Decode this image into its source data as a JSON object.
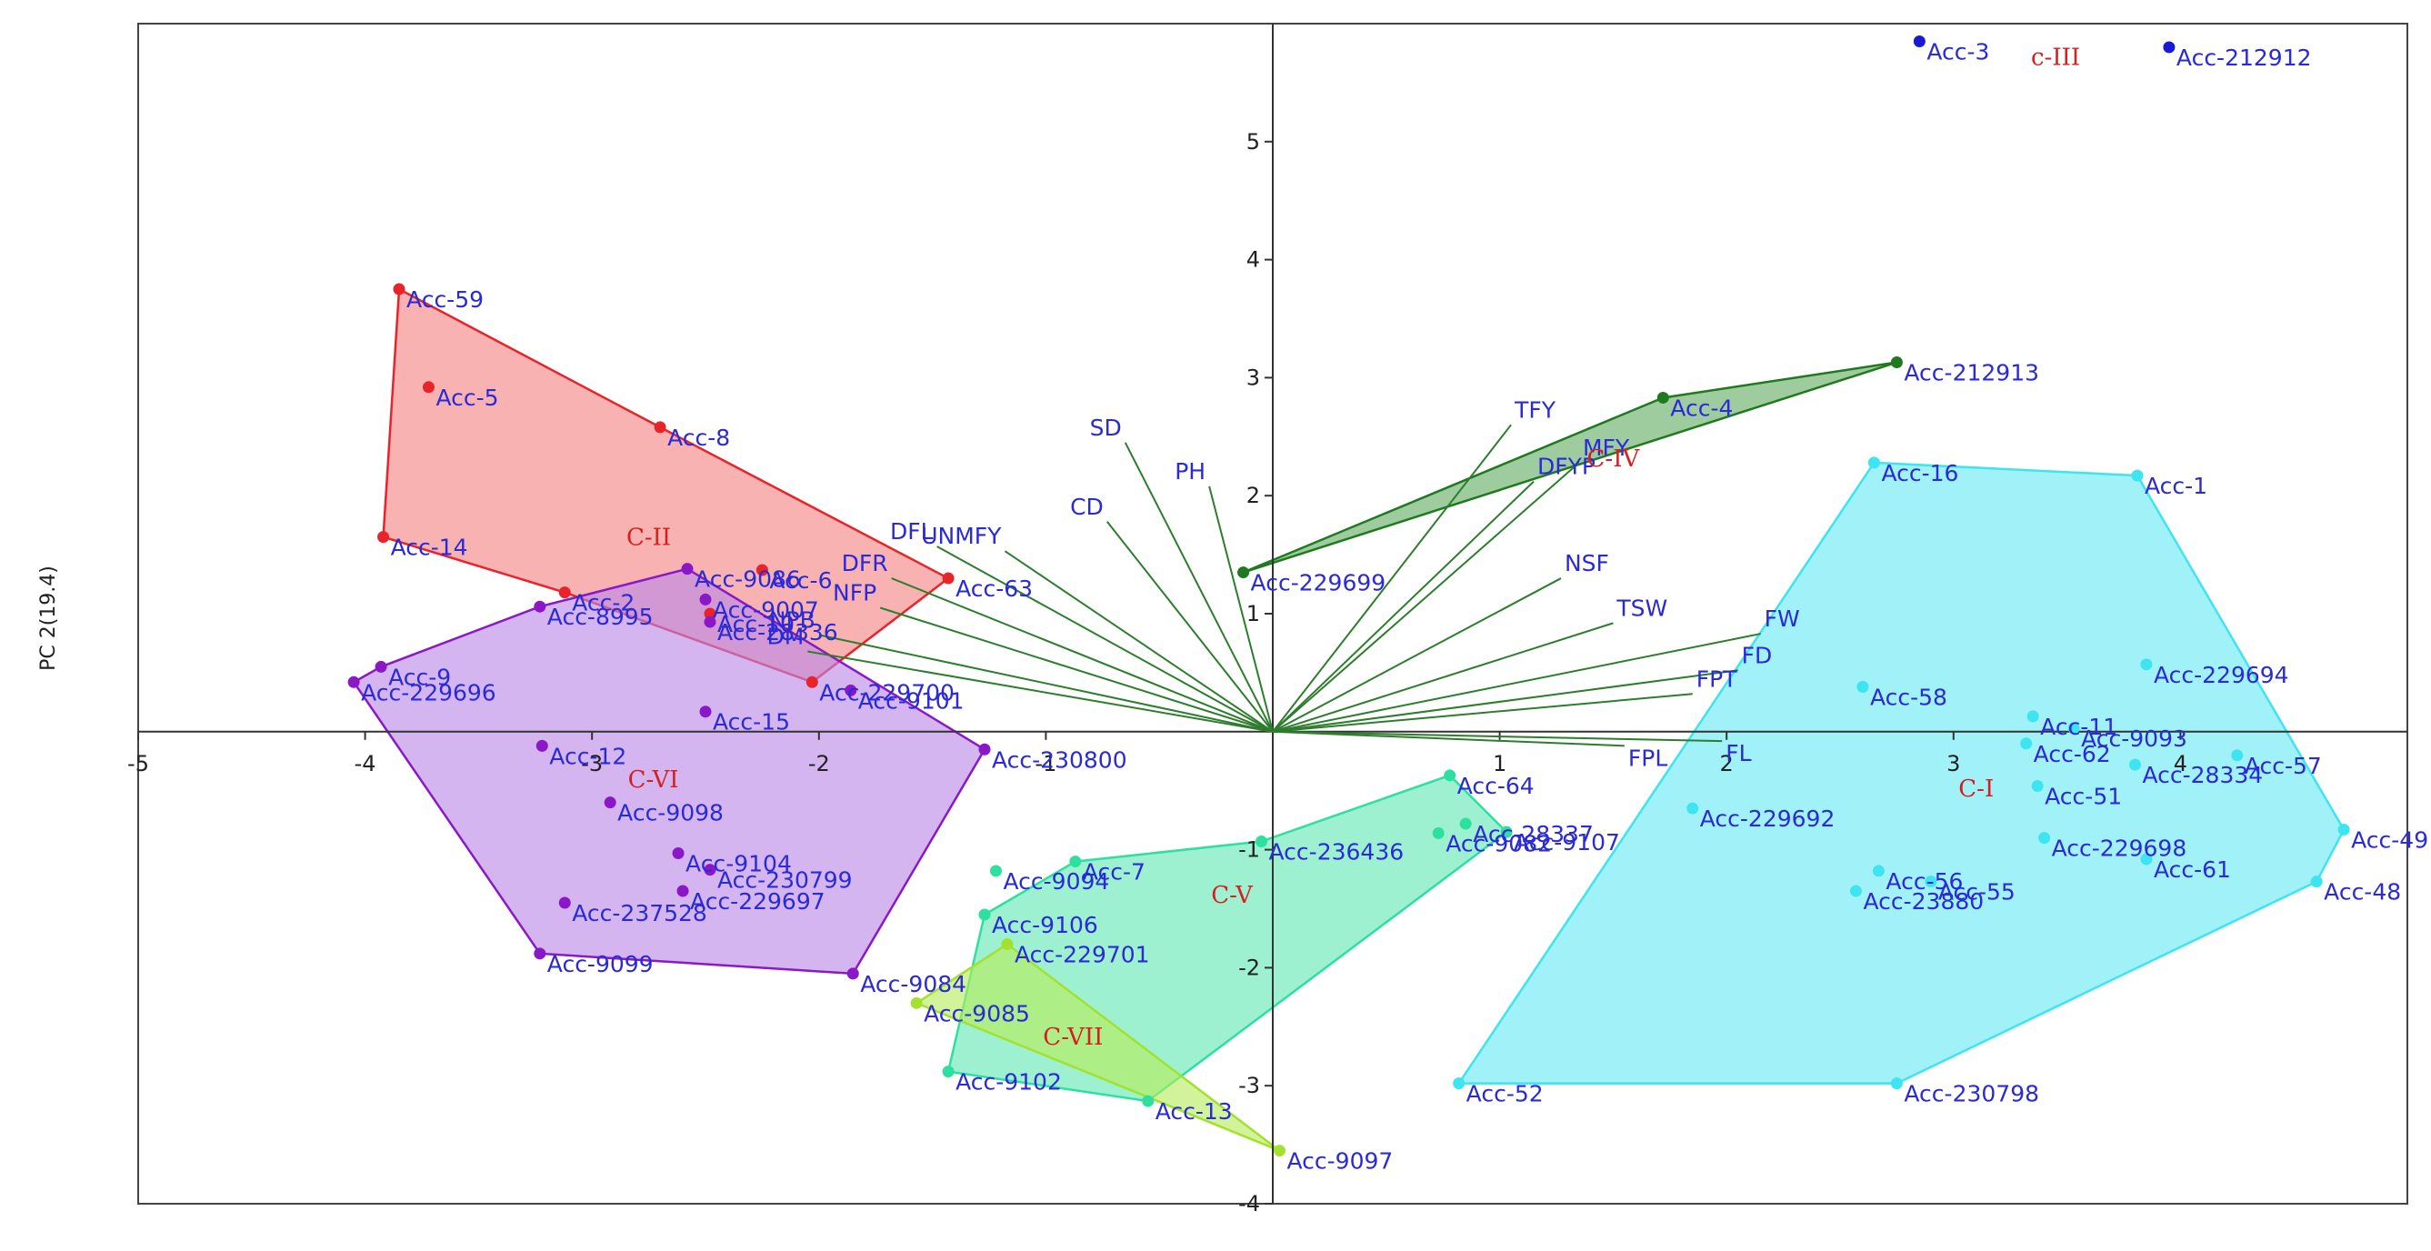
{
  "chart_data": {
    "type": "scatter",
    "title": "",
    "xlabel": "",
    "ylabel": "PC 2(19.4)",
    "xlim": [
      -5.0,
      5.0
    ],
    "ylim": [
      -4.0,
      6.0
    ],
    "x_ticks": [
      -5,
      -4,
      -3,
      -2,
      -1,
      1,
      2,
      3,
      4
    ],
    "y_ticks": [
      -4,
      -3,
      -2,
      -1,
      1,
      2,
      3,
      4,
      5
    ],
    "tick_labels": {
      "x": {
        "-5": "-5",
        "-4": "-4",
        "-3": "-3",
        "-2": "-2",
        "-1": "-1",
        "1": "1",
        "2": "2",
        "3": "3",
        "4": "4"
      },
      "y": {
        "-4": "-4",
        "-3": "-3",
        "-2": "-2",
        "-1": "-1",
        "1": "1",
        "2": "2",
        "3": "3",
        "4": "4",
        "5": "5"
      }
    },
    "grid": false,
    "vector_color": "#2e7d2e",
    "point_label_color": "#2a2ad8",
    "cluster_label_color": "#d62020",
    "clusters": [
      {
        "label": "C-I",
        "label_pos": [
          3.1,
          -0.55
        ],
        "color": "#3ee4f0",
        "fill": "#63e9f3",
        "opacity": 0.6,
        "hull": [
          "Acc-16",
          "Acc-1",
          "Acc-49",
          "Acc-48",
          "Acc-230798",
          "Acc-52"
        ],
        "points": [
          {
            "name": "Acc-16",
            "x": 2.65,
            "y": 2.28
          },
          {
            "name": "Acc-1",
            "x": 3.81,
            "y": 2.17
          },
          {
            "name": "Acc-229694",
            "x": 3.85,
            "y": 0.57
          },
          {
            "name": "Acc-58",
            "x": 2.6,
            "y": 0.38
          },
          {
            "name": "Acc-11",
            "x": 3.35,
            "y": 0.13
          },
          {
            "name": "Acc-9093",
            "x": 3.53,
            "y": 0.03
          },
          {
            "name": "Acc-62",
            "x": 3.32,
            "y": -0.1
          },
          {
            "name": "Acc-57",
            "x": 4.25,
            "y": -0.2
          },
          {
            "name": "Acc-28334",
            "x": 3.8,
            "y": -0.28
          },
          {
            "name": "Acc-51",
            "x": 3.37,
            "y": -0.46
          },
          {
            "name": "Acc-229692",
            "x": 1.85,
            "y": -0.65
          },
          {
            "name": "Acc-49",
            "x": 4.72,
            "y": -0.83
          },
          {
            "name": "Acc-229698",
            "x": 3.4,
            "y": -0.9
          },
          {
            "name": "Acc-61",
            "x": 3.85,
            "y": -1.08
          },
          {
            "name": "Acc-56",
            "x": 2.67,
            "y": -1.18
          },
          {
            "name": "Acc-55",
            "x": 2.9,
            "y": -1.27
          },
          {
            "name": "Acc-23880",
            "x": 2.57,
            "y": -1.35
          },
          {
            "name": "Acc-48",
            "x": 4.6,
            "y": -1.27
          },
          {
            "name": "Acc-52",
            "x": 0.82,
            "y": -2.98
          },
          {
            "name": "Acc-230798",
            "x": 2.75,
            "y": -2.98
          }
        ]
      },
      {
        "label": "C-II",
        "label_pos": [
          -2.75,
          1.58
        ],
        "color": "#e8232a",
        "fill": "#f59494",
        "opacity": 0.72,
        "hull": [
          "Acc-59",
          "Acc-8",
          "Acc-63",
          "Acc-229700",
          "Acc-2",
          "Acc-14"
        ],
        "points": [
          {
            "name": "Acc-59",
            "x": -3.85,
            "y": 3.75
          },
          {
            "name": "Acc-5",
            "x": -3.72,
            "y": 2.92
          },
          {
            "name": "Acc-8",
            "x": -2.7,
            "y": 2.58
          },
          {
            "name": "Acc-14",
            "x": -3.92,
            "y": 1.65
          },
          {
            "name": "Acc-6",
            "x": -2.25,
            "y": 1.37
          },
          {
            "name": "Acc-63",
            "x": -1.43,
            "y": 1.3
          },
          {
            "name": "Acc-2",
            "x": -3.12,
            "y": 1.18
          },
          {
            "name": "Acc-10",
            "x": -2.48,
            "y": 1.0
          },
          {
            "name": "Acc-229700",
            "x": -2.03,
            "y": 0.42
          }
        ]
      },
      {
        "label": "c-III",
        "label_pos": [
          3.45,
          5.65
        ],
        "color": "#1a1ad6",
        "fill": "#1a1ad6",
        "opacity": 0.0,
        "hull": [],
        "points": [
          {
            "name": "Acc-3",
            "x": 2.85,
            "y": 5.85
          },
          {
            "name": "Acc-212912",
            "x": 3.95,
            "y": 5.8
          }
        ]
      },
      {
        "label": "C-IV",
        "label_pos": [
          1.5,
          2.25
        ],
        "color": "#1f7a1f",
        "fill": "#5faa5f",
        "opacity": 0.6,
        "hull": [
          "Acc-212913",
          "Acc-4",
          "Acc-229699"
        ],
        "points": [
          {
            "name": "Acc-212913",
            "x": 2.75,
            "y": 3.13
          },
          {
            "name": "Acc-4",
            "x": 1.72,
            "y": 2.83
          },
          {
            "name": "Acc-229699",
            "x": -0.13,
            "y": 1.35
          }
        ]
      },
      {
        "label": "C-V",
        "label_pos": [
          -0.18,
          -1.45
        ],
        "color": "#2ee0a0",
        "fill": "#5ee8b0",
        "opacity": 0.6,
        "hull": [
          "Acc-7",
          "Acc-236436",
          "Acc-64",
          "Acc-9107",
          "Acc-13",
          "Acc-9102",
          "Acc-9106"
        ],
        "points": [
          {
            "name": "Acc-64",
            "x": 0.78,
            "y": -0.37
          },
          {
            "name": "Acc-28337",
            "x": 0.85,
            "y": -0.78
          },
          {
            "name": "Acc-9082",
            "x": 0.73,
            "y": -0.86
          },
          {
            "name": "Acc-9107",
            "x": 1.03,
            "y": -0.85
          },
          {
            "name": "Acc-236436",
            "x": -0.05,
            "y": -0.93
          },
          {
            "name": "Acc-7",
            "x": -0.87,
            "y": -1.1
          },
          {
            "name": "Acc-9094",
            "x": -1.22,
            "y": -1.18
          },
          {
            "name": "Acc-9106",
            "x": -1.27,
            "y": -1.55
          },
          {
            "name": "Acc-9102",
            "x": -1.43,
            "y": -2.88
          },
          {
            "name": "Acc-13",
            "x": -0.55,
            "y": -3.13
          }
        ]
      },
      {
        "label": "C-VI",
        "label_pos": [
          -2.73,
          -0.47
        ],
        "color": "#8a18c8",
        "fill": "#b988e6",
        "opacity": 0.62,
        "hull": [
          "Acc-9086",
          "Acc-230800",
          "Acc-9084",
          "Acc-9099",
          "Acc-229696",
          "Acc-9",
          "Acc-8995"
        ],
        "points": [
          {
            "name": "Acc-9086",
            "x": -2.58,
            "y": 1.38
          },
          {
            "name": "Acc-8995",
            "x": -3.23,
            "y": 1.06
          },
          {
            "name": "Acc-9007",
            "x": -2.5,
            "y": 1.12
          },
          {
            "name": "Acc-28336",
            "x": -2.48,
            "y": 0.93
          },
          {
            "name": "Acc-9",
            "x": -3.93,
            "y": 0.55
          },
          {
            "name": "Acc-229696",
            "x": -4.05,
            "y": 0.42
          },
          {
            "name": "Acc-9101",
            "x": -1.86,
            "y": 0.35
          },
          {
            "name": "Acc-15",
            "x": -2.5,
            "y": 0.17
          },
          {
            "name": "Acc-12",
            "x": -3.22,
            "y": -0.12
          },
          {
            "name": "Acc-230800",
            "x": -1.27,
            "y": -0.15
          },
          {
            "name": "Acc-9098",
            "x": -2.92,
            "y": -0.6
          },
          {
            "name": "Acc-9104",
            "x": -2.62,
            "y": -1.03
          },
          {
            "name": "Acc-230799",
            "x": -2.48,
            "y": -1.17
          },
          {
            "name": "Acc-229697",
            "x": -2.6,
            "y": -1.35
          },
          {
            "name": "Acc-237528",
            "x": -3.12,
            "y": -1.45
          },
          {
            "name": "Acc-9099",
            "x": -3.23,
            "y": -1.88
          },
          {
            "name": "Acc-9084",
            "x": -1.85,
            "y": -2.05
          }
        ]
      },
      {
        "label": "C-VII",
        "label_pos": [
          -0.88,
          -2.65
        ],
        "color": "#a2e22e",
        "fill": "#b6ec5a",
        "opacity": 0.62,
        "hull": [
          "Acc-229701",
          "Acc-9097",
          "Acc-9085"
        ],
        "points": [
          {
            "name": "Acc-229701",
            "x": -1.17,
            "y": -1.8
          },
          {
            "name": "Acc-9085",
            "x": -1.57,
            "y": -2.3
          },
          {
            "name": "Acc-9097",
            "x": 0.03,
            "y": -3.55
          }
        ]
      }
    ],
    "vectors": [
      {
        "name": "SD",
        "x": -0.65,
        "y": 2.45
      },
      {
        "name": "PH",
        "x": -0.28,
        "y": 2.08
      },
      {
        "name": "CD",
        "x": -0.73,
        "y": 1.78
      },
      {
        "name": "DFL",
        "x": -1.48,
        "y": 1.57
      },
      {
        "name": "UNMFY",
        "x": -1.18,
        "y": 1.53
      },
      {
        "name": "DFR",
        "x": -1.68,
        "y": 1.3
      },
      {
        "name": "NFP",
        "x": -1.73,
        "y": 1.05
      },
      {
        "name": "NPB",
        "x": -2.0,
        "y": 0.82
      },
      {
        "name": "DM",
        "x": -2.05,
        "y": 0.68
      },
      {
        "name": "TFY",
        "x": 1.05,
        "y": 2.6
      },
      {
        "name": "MFY",
        "x": 1.35,
        "y": 2.28
      },
      {
        "name": "DFYP",
        "x": 1.15,
        "y": 2.12
      },
      {
        "name": "NSF",
        "x": 1.27,
        "y": 1.3
      },
      {
        "name": "TSW",
        "x": 1.5,
        "y": 0.92
      },
      {
        "name": "FW",
        "x": 2.15,
        "y": 0.83
      },
      {
        "name": "FD",
        "x": 2.05,
        "y": 0.52
      },
      {
        "name": "FPT",
        "x": 1.85,
        "y": 0.32
      },
      {
        "name": "FL",
        "x": 1.98,
        "y": -0.08
      },
      {
        "name": "FPL",
        "x": 1.55,
        "y": -0.12
      }
    ]
  }
}
